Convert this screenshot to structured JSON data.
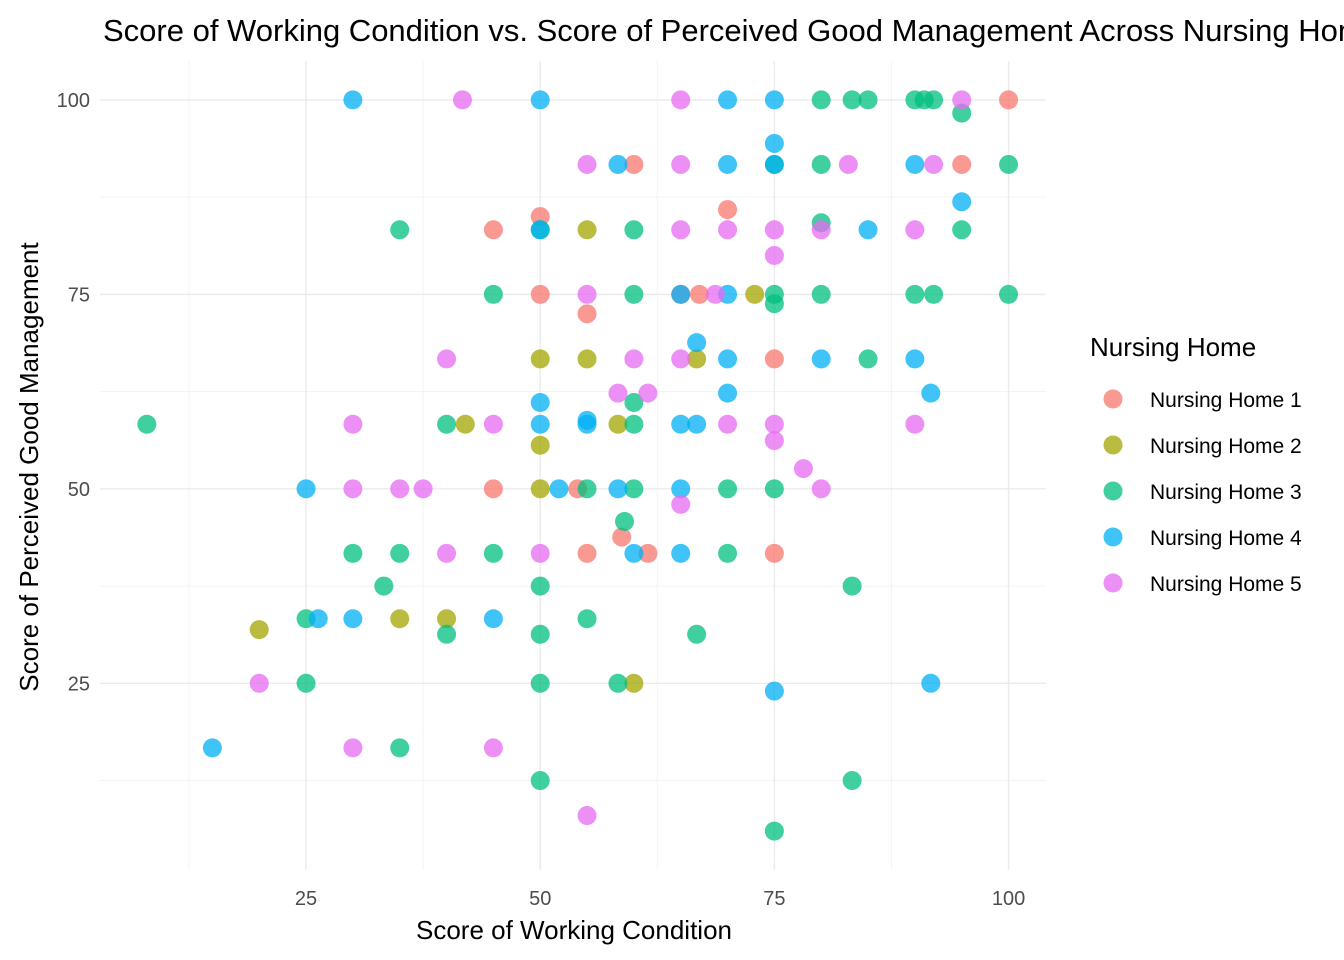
{
  "chart_data": {
    "type": "scatter",
    "title": "Score of Working Condition vs. Score of Perceived Good Management Across Nursing Homes",
    "xlabel": "Score of Working Condition",
    "ylabel": "Score of Perceived Good Management",
    "xlim": [
      3,
      104
    ],
    "ylim": [
      1,
      105
    ],
    "x_ticks": [
      25,
      50,
      75,
      100
    ],
    "y_ticks": [
      25,
      50,
      75,
      100
    ],
    "grid": true,
    "legend": {
      "title": "Nursing Home",
      "position": "right"
    },
    "series": [
      {
        "name": "Nursing Home 1",
        "color": "#F8766D",
        "points": [
          [
            50,
            85
          ],
          [
            45,
            83.3
          ],
          [
            50,
            75
          ],
          [
            55,
            72.5
          ],
          [
            54,
            50
          ],
          [
            45,
            50
          ],
          [
            55,
            41.7
          ],
          [
            58.7,
            43.8
          ],
          [
            61.5,
            41.7
          ],
          [
            60,
            91.7
          ],
          [
            70,
            85.9
          ],
          [
            65,
            75
          ],
          [
            67,
            75
          ],
          [
            75,
            66.7
          ],
          [
            75,
            41.7
          ],
          [
            95,
            91.7
          ],
          [
            100,
            100
          ]
        ]
      },
      {
        "name": "Nursing Home 2",
        "color": "#A3A500",
        "points": [
          [
            20,
            31.9
          ],
          [
            35,
            33.3
          ],
          [
            40,
            33.3
          ],
          [
            42,
            58.3
          ],
          [
            50,
            66.7
          ],
          [
            50,
            55.6
          ],
          [
            50,
            50
          ],
          [
            55,
            83.3
          ],
          [
            55,
            66.7
          ],
          [
            58.3,
            58.3
          ],
          [
            60,
            25
          ],
          [
            66.7,
            66.7
          ],
          [
            72.9,
            75
          ]
        ]
      },
      {
        "name": "Nursing Home 3",
        "color": "#00BF7D",
        "points": [
          [
            8,
            58.3
          ],
          [
            25,
            33.3
          ],
          [
            25,
            25
          ],
          [
            30,
            41.7
          ],
          [
            33.3,
            37.5
          ],
          [
            35,
            83.3
          ],
          [
            35,
            41.7
          ],
          [
            35,
            16.7
          ],
          [
            40,
            58.3
          ],
          [
            40,
            31.3
          ],
          [
            45,
            75
          ],
          [
            45,
            41.7
          ],
          [
            50,
            83.3
          ],
          [
            50,
            37.5
          ],
          [
            50,
            31.3
          ],
          [
            50,
            25
          ],
          [
            50,
            12.5
          ],
          [
            55,
            50
          ],
          [
            55,
            33.3
          ],
          [
            58.3,
            25
          ],
          [
            59,
            45.8
          ],
          [
            60,
            83.3
          ],
          [
            60,
            75
          ],
          [
            60,
            61.1
          ],
          [
            60,
            58.3
          ],
          [
            60,
            50
          ],
          [
            66.7,
            31.3
          ],
          [
            70,
            50
          ],
          [
            70,
            41.7
          ],
          [
            75,
            91.7
          ],
          [
            75,
            75
          ],
          [
            75,
            73.8
          ],
          [
            75,
            50
          ],
          [
            75,
            6
          ],
          [
            80,
            100
          ],
          [
            80,
            91.7
          ],
          [
            80,
            84.2
          ],
          [
            80,
            75
          ],
          [
            83.3,
            100
          ],
          [
            85,
            100
          ],
          [
            85,
            66.7
          ],
          [
            83.3,
            37.5
          ],
          [
            83.3,
            12.5
          ],
          [
            90,
            100
          ],
          [
            90,
            75
          ],
          [
            91,
            100
          ],
          [
            92,
            100
          ],
          [
            92,
            75
          ],
          [
            95,
            98.3
          ],
          [
            95,
            83.3
          ],
          [
            100,
            91.7
          ],
          [
            100,
            75
          ]
        ]
      },
      {
        "name": "Nursing Home 4",
        "color": "#00B0F6",
        "points": [
          [
            15,
            16.7
          ],
          [
            25,
            50
          ],
          [
            26.3,
            33.3
          ],
          [
            30,
            100
          ],
          [
            30,
            33.3
          ],
          [
            45,
            33.3
          ],
          [
            50,
            100
          ],
          [
            50,
            83.3
          ],
          [
            50,
            61.1
          ],
          [
            50,
            58.3
          ],
          [
            52,
            50
          ],
          [
            55,
            58.8
          ],
          [
            55,
            58.3
          ],
          [
            58.3,
            91.7
          ],
          [
            58.3,
            50
          ],
          [
            60,
            41.7
          ],
          [
            65,
            75
          ],
          [
            65,
            58.3
          ],
          [
            65,
            50
          ],
          [
            65,
            41.7
          ],
          [
            66.7,
            68.8
          ],
          [
            66.7,
            58.3
          ],
          [
            70,
            100
          ],
          [
            70,
            91.7
          ],
          [
            70,
            75
          ],
          [
            70,
            66.7
          ],
          [
            70,
            62.3
          ],
          [
            75,
            100
          ],
          [
            75,
            94.4
          ],
          [
            75,
            91.7
          ],
          [
            75,
            24
          ],
          [
            80,
            66.7
          ],
          [
            85,
            83.3
          ],
          [
            90,
            91.7
          ],
          [
            90,
            66.7
          ],
          [
            91.7,
            62.3
          ],
          [
            91.7,
            25
          ],
          [
            95,
            86.9
          ]
        ]
      },
      {
        "name": "Nursing Home 5",
        "color": "#E76BF3",
        "points": [
          [
            20,
            25
          ],
          [
            30,
            58.3
          ],
          [
            30,
            50
          ],
          [
            30,
            16.7
          ],
          [
            35,
            50
          ],
          [
            37.5,
            50
          ],
          [
            40,
            66.7
          ],
          [
            40,
            41.7
          ],
          [
            41.7,
            100
          ],
          [
            45,
            58.3
          ],
          [
            45,
            16.7
          ],
          [
            50,
            41.7
          ],
          [
            55,
            91.7
          ],
          [
            55,
            75
          ],
          [
            55,
            8
          ],
          [
            58.3,
            62.3
          ],
          [
            60,
            66.7
          ],
          [
            61.5,
            62.3
          ],
          [
            65,
            100
          ],
          [
            65,
            91.7
          ],
          [
            65,
            83.3
          ],
          [
            65,
            66.7
          ],
          [
            65,
            48
          ],
          [
            68.7,
            75
          ],
          [
            70,
            83.3
          ],
          [
            70,
            58.3
          ],
          [
            75,
            83.3
          ],
          [
            75,
            80
          ],
          [
            75,
            58.3
          ],
          [
            75,
            56.2
          ],
          [
            78.1,
            52.6
          ],
          [
            80,
            83.3
          ],
          [
            80,
            50
          ],
          [
            82.9,
            91.7
          ],
          [
            90,
            83.3
          ],
          [
            90,
            58.3
          ],
          [
            92,
            91.7
          ],
          [
            95,
            100
          ]
        ]
      }
    ]
  }
}
